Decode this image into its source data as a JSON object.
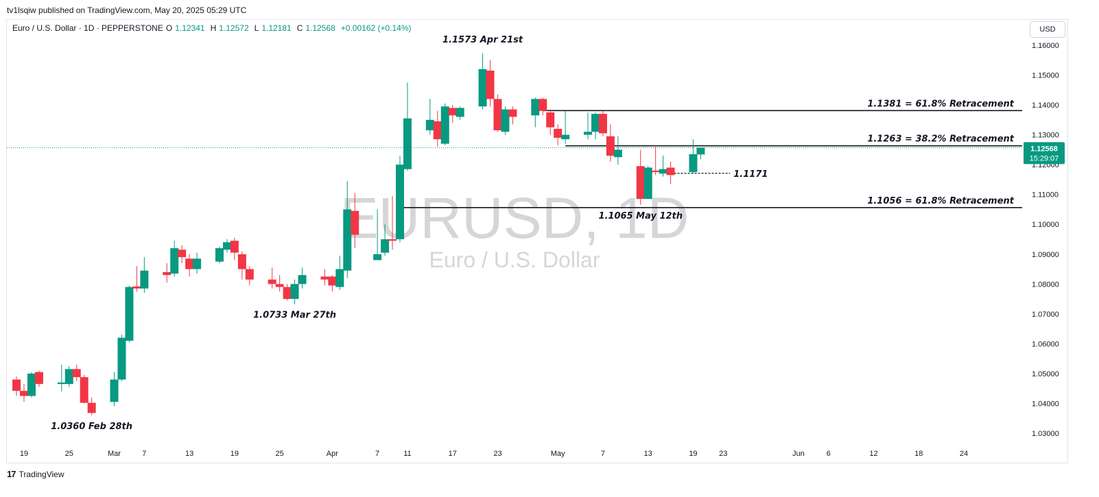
{
  "publisher": "tv1lsqiw published on TradingView.com, May 20, 2025 05:29 UTC",
  "legend": {
    "symbol": "Euro / U.S. Dollar · 1D · PEPPERSTONE",
    "o_label": "O",
    "o": "1.12341",
    "h_label": "H",
    "h": "1.12572",
    "l_label": "L",
    "l": "1.12181",
    "c_label": "C",
    "c": "1.12568",
    "change": "+0.00162 (+0.14%)"
  },
  "currency_button": "USD",
  "price_badge": {
    "price": "1.12568",
    "countdown": "15:29:07"
  },
  "watermark": {
    "symbol": "EURUSD, 1D",
    "name": "Euro / U.S. Dollar"
  },
  "brand": "TradingView",
  "colors": {
    "up": "#089981",
    "down": "#f23645",
    "text": "#131722",
    "badge": "#089981"
  },
  "chart_data": {
    "type": "candlestick",
    "ylim": [
      1.025,
      1.1665
    ],
    "y_ticks": [
      "1.03000",
      "1.04000",
      "1.05000",
      "1.06000",
      "1.07000",
      "1.08000",
      "1.09000",
      "1.10000",
      "1.11000",
      "1.12000",
      "1.13000",
      "1.14000",
      "1.15000",
      "1.16000"
    ],
    "x_ticks": [
      {
        "label": "19",
        "date": "2025-02-19"
      },
      {
        "label": "25",
        "date": "2025-02-25"
      },
      {
        "label": "Mar",
        "date": "2025-03-03"
      },
      {
        "label": "7",
        "date": "2025-03-07"
      },
      {
        "label": "13",
        "date": "2025-03-13"
      },
      {
        "label": "19",
        "date": "2025-03-19"
      },
      {
        "label": "25",
        "date": "2025-03-25"
      },
      {
        "label": "Apr",
        "date": "2025-04-01"
      },
      {
        "label": "7",
        "date": "2025-04-07"
      },
      {
        "label": "11",
        "date": "2025-04-11"
      },
      {
        "label": "17",
        "date": "2025-04-17"
      },
      {
        "label": "23",
        "date": "2025-04-23"
      },
      {
        "label": "May",
        "date": "2025-05-01"
      },
      {
        "label": "7",
        "date": "2025-05-07"
      },
      {
        "label": "13",
        "date": "2025-05-13"
      },
      {
        "label": "19",
        "date": "2025-05-19"
      },
      {
        "label": "23",
        "date": "2025-05-23"
      },
      {
        "label": "Jun",
        "date": "2025-06-02"
      },
      {
        "label": "6",
        "date": "2025-06-06"
      },
      {
        "label": "12",
        "date": "2025-06-12"
      },
      {
        "label": "18",
        "date": "2025-06-18"
      },
      {
        "label": "24",
        "date": "2025-06-24"
      }
    ],
    "candles": [
      {
        "d": "2025-02-18",
        "o": 1.048,
        "h": 1.049,
        "l": 1.0425,
        "c": 1.0442
      },
      {
        "d": "2025-02-19",
        "o": 1.0442,
        "h": 1.0465,
        "l": 1.0405,
        "c": 1.0425
      },
      {
        "d": "2025-02-20",
        "o": 1.0425,
        "h": 1.0505,
        "l": 1.042,
        "c": 1.05
      },
      {
        "d": "2025-02-21",
        "o": 1.0505,
        "h": 1.051,
        "l": 1.0455,
        "c": 1.0465
      },
      {
        "d": "2025-02-24",
        "o": 1.0465,
        "h": 1.053,
        "l": 1.044,
        "c": 1.047
      },
      {
        "d": "2025-02-25",
        "o": 1.0465,
        "h": 1.0525,
        "l": 1.0455,
        "c": 1.0515
      },
      {
        "d": "2025-02-26",
        "o": 1.0515,
        "h": 1.053,
        "l": 1.0475,
        "c": 1.0488
      },
      {
        "d": "2025-02-27",
        "o": 1.0488,
        "h": 1.0495,
        "l": 1.04,
        "c": 1.0402
      },
      {
        "d": "2025-02-28",
        "o": 1.0402,
        "h": 1.042,
        "l": 1.036,
        "c": 1.0368
      },
      {
        "d": "2025-03-03",
        "o": 1.0405,
        "h": 1.0505,
        "l": 1.039,
        "c": 1.048
      },
      {
        "d": "2025-03-04",
        "o": 1.048,
        "h": 1.063,
        "l": 1.0475,
        "c": 1.062
      },
      {
        "d": "2025-03-05",
        "o": 1.061,
        "h": 1.0795,
        "l": 1.0605,
        "c": 1.079
      },
      {
        "d": "2025-03-06",
        "o": 1.0792,
        "h": 1.086,
        "l": 1.0775,
        "c": 1.0785
      },
      {
        "d": "2025-03-07",
        "o": 1.0785,
        "h": 1.089,
        "l": 1.077,
        "c": 1.0845
      },
      {
        "d": "2025-03-10",
        "o": 1.084,
        "h": 1.087,
        "l": 1.0805,
        "c": 1.083
      },
      {
        "d": "2025-03-11",
        "o": 1.0835,
        "h": 1.0945,
        "l": 1.0825,
        "c": 1.092
      },
      {
        "d": "2025-03-12",
        "o": 1.0915,
        "h": 1.093,
        "l": 1.087,
        "c": 1.089
      },
      {
        "d": "2025-03-13",
        "o": 1.0885,
        "h": 1.09,
        "l": 1.0825,
        "c": 1.085
      },
      {
        "d": "2025-03-14",
        "o": 1.085,
        "h": 1.0905,
        "l": 1.0835,
        "c": 1.0885
      },
      {
        "d": "2025-03-17",
        "o": 1.0875,
        "h": 1.0925,
        "l": 1.087,
        "c": 1.092
      },
      {
        "d": "2025-03-18",
        "o": 1.0915,
        "h": 1.095,
        "l": 1.0905,
        "c": 1.094
      },
      {
        "d": "2025-03-19",
        "o": 1.0945,
        "h": 1.0955,
        "l": 1.088,
        "c": 1.0905
      },
      {
        "d": "2025-03-20",
        "o": 1.09,
        "h": 1.091,
        "l": 1.0815,
        "c": 1.085
      },
      {
        "d": "2025-03-21",
        "o": 1.085,
        "h": 1.086,
        "l": 1.0795,
        "c": 1.0815
      },
      {
        "d": "2025-03-24",
        "o": 1.0815,
        "h": 1.0855,
        "l": 1.0785,
        "c": 1.08
      },
      {
        "d": "2025-03-25",
        "o": 1.08,
        "h": 1.083,
        "l": 1.0775,
        "c": 1.079
      },
      {
        "d": "2025-03-26",
        "o": 1.079,
        "h": 1.08,
        "l": 1.0745,
        "c": 1.075
      },
      {
        "d": "2025-03-27",
        "o": 1.075,
        "h": 1.0815,
        "l": 1.0733,
        "c": 1.08
      },
      {
        "d": "2025-03-28",
        "o": 1.08,
        "h": 1.0855,
        "l": 1.0785,
        "c": 1.083
      },
      {
        "d": "2025-03-31",
        "o": 1.0825,
        "h": 1.085,
        "l": 1.0795,
        "c": 1.0815
      },
      {
        "d": "2025-04-01",
        "o": 1.0825,
        "h": 1.083,
        "l": 1.0775,
        "c": 1.0795
      },
      {
        "d": "2025-04-02",
        "o": 1.079,
        "h": 1.0895,
        "l": 1.078,
        "c": 1.085
      },
      {
        "d": "2025-04-03",
        "o": 1.0845,
        "h": 1.1145,
        "l": 1.082,
        "c": 1.105
      },
      {
        "d": "2025-04-04",
        "o": 1.1045,
        "h": 1.1105,
        "l": 1.092,
        "c": 1.0965
      },
      {
        "d": "2025-04-07",
        "o": 1.088,
        "h": 1.105,
        "l": 1.088,
        "c": 1.09
      },
      {
        "d": "2025-04-08",
        "o": 1.0905,
        "h": 1.1,
        "l": 1.0895,
        "c": 1.095
      },
      {
        "d": "2025-04-09",
        "o": 1.095,
        "h": 1.1095,
        "l": 1.0915,
        "c": 1.0945
      },
      {
        "d": "2025-04-10",
        "o": 1.095,
        "h": 1.123,
        "l": 1.094,
        "c": 1.12
      },
      {
        "d": "2025-04-11",
        "o": 1.1185,
        "h": 1.1475,
        "l": 1.118,
        "c": 1.1355
      },
      {
        "d": "2025-04-14",
        "o": 1.1315,
        "h": 1.142,
        "l": 1.13,
        "c": 1.135
      },
      {
        "d": "2025-04-15",
        "o": 1.1345,
        "h": 1.138,
        "l": 1.126,
        "c": 1.1285
      },
      {
        "d": "2025-04-16",
        "o": 1.127,
        "h": 1.1405,
        "l": 1.1265,
        "c": 1.1395
      },
      {
        "d": "2025-04-17",
        "o": 1.139,
        "h": 1.14,
        "l": 1.134,
        "c": 1.1365
      },
      {
        "d": "2025-04-18",
        "o": 1.136,
        "h": 1.1395,
        "l": 1.135,
        "c": 1.139
      },
      {
        "d": "2025-04-21",
        "o": 1.1395,
        "h": 1.1573,
        "l": 1.1385,
        "c": 1.152
      },
      {
        "d": "2025-04-22",
        "o": 1.1515,
        "h": 1.155,
        "l": 1.1395,
        "c": 1.142
      },
      {
        "d": "2025-04-23",
        "o": 1.142,
        "h": 1.1435,
        "l": 1.131,
        "c": 1.1315
      },
      {
        "d": "2025-04-24",
        "o": 1.131,
        "h": 1.1395,
        "l": 1.13,
        "c": 1.1385
      },
      {
        "d": "2025-04-25",
        "o": 1.1385,
        "h": 1.1395,
        "l": 1.1335,
        "c": 1.136
      },
      {
        "d": "2025-04-28",
        "o": 1.1365,
        "h": 1.1425,
        "l": 1.1325,
        "c": 1.142
      },
      {
        "d": "2025-04-29",
        "o": 1.142,
        "h": 1.1425,
        "l": 1.1365,
        "c": 1.138
      },
      {
        "d": "2025-04-30",
        "o": 1.1375,
        "h": 1.1385,
        "l": 1.13,
        "c": 1.1325
      },
      {
        "d": "2025-05-01",
        "o": 1.132,
        "h": 1.1335,
        "l": 1.1265,
        "c": 1.129
      },
      {
        "d": "2025-05-02",
        "o": 1.1285,
        "h": 1.138,
        "l": 1.127,
        "c": 1.13
      },
      {
        "d": "2025-05-05",
        "o": 1.13,
        "h": 1.1375,
        "l": 1.1285,
        "c": 1.131
      },
      {
        "d": "2025-05-06",
        "o": 1.131,
        "h": 1.1375,
        "l": 1.1285,
        "c": 1.137
      },
      {
        "d": "2025-05-07",
        "o": 1.137,
        "h": 1.138,
        "l": 1.1295,
        "c": 1.1305
      },
      {
        "d": "2025-05-08",
        "o": 1.1295,
        "h": 1.1335,
        "l": 1.121,
        "c": 1.123
      },
      {
        "d": "2025-05-09",
        "o": 1.1225,
        "h": 1.1295,
        "l": 1.12,
        "c": 1.125
      },
      {
        "d": "2025-05-12",
        "o": 1.1195,
        "h": 1.125,
        "l": 1.1065,
        "c": 1.1085
      },
      {
        "d": "2025-05-13",
        "o": 1.1085,
        "h": 1.1195,
        "l": 1.1085,
        "c": 1.119
      },
      {
        "d": "2025-05-14",
        "o": 1.118,
        "h": 1.1265,
        "l": 1.1165,
        "c": 1.1175
      },
      {
        "d": "2025-05-15",
        "o": 1.117,
        "h": 1.123,
        "l": 1.116,
        "c": 1.1185
      },
      {
        "d": "2025-05-16",
        "o": 1.119,
        "h": 1.121,
        "l": 1.1135,
        "c": 1.1165
      },
      {
        "d": "2025-05-19",
        "o": 1.1175,
        "h": 1.1285,
        "l": 1.117,
        "c": 1.1235
      },
      {
        "d": "2025-05-20",
        "o": 1.12341,
        "h": 1.12572,
        "l": 1.12181,
        "c": 1.12568
      }
    ],
    "hlines": [
      {
        "label": "1.1381 = 61.8% Retracement",
        "price": 1.1381,
        "from": "2025-04-29",
        "style": "solid"
      },
      {
        "label": "1.1263 = 38.2% Retracement",
        "price": 1.1263,
        "from": "2025-05-02",
        "style": "solid"
      },
      {
        "label": "1.1056 = 61.8% Retracement",
        "price": 1.1056,
        "from": "2025-04-10",
        "style": "solid"
      },
      {
        "label": "1.1171",
        "price": 1.1171,
        "from": "2025-05-16",
        "to": "2025-05-23",
        "style": "dashed"
      }
    ],
    "annotations": [
      {
        "text": "1.1573 Apr 21st",
        "date": "2025-04-21",
        "price": 1.1573,
        "pos": "above"
      },
      {
        "text": "1.0733 Mar 27th",
        "date": "2025-03-27",
        "price": 1.0733,
        "pos": "below"
      },
      {
        "text": "1.1065 May 12th",
        "date": "2025-05-12",
        "price": 1.1065,
        "pos": "below"
      },
      {
        "text": "1.0360 Feb 28th",
        "date": "2025-02-28",
        "price": 1.036,
        "pos": "below"
      }
    ],
    "last_price": 1.12568
  }
}
